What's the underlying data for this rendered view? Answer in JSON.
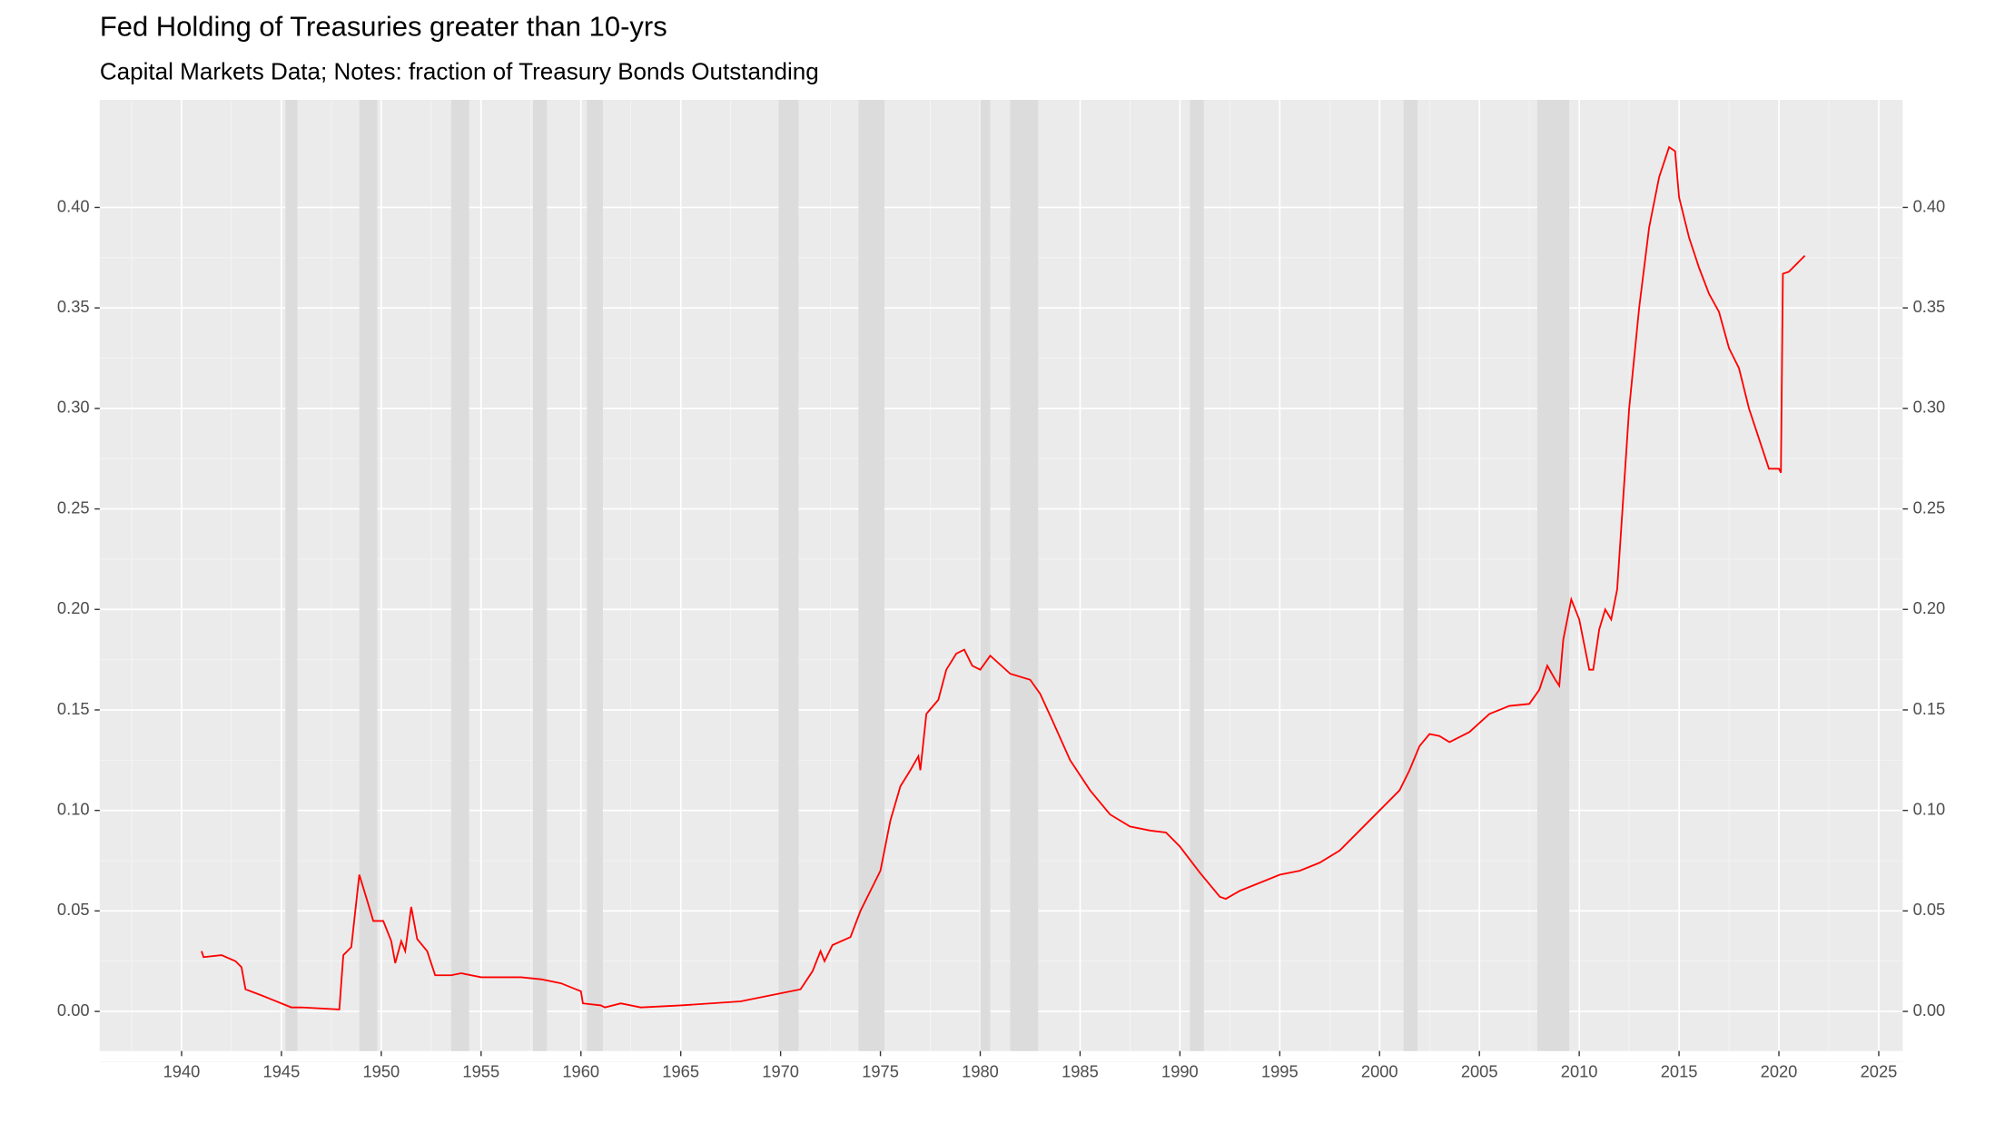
{
  "chart_data": {
    "type": "line",
    "title": "Fed Holding of Treasuries greater than 10-yrs",
    "subtitle": "Capital Markets Data; Notes: fraction of Treasury Bonds Outstanding",
    "series": [
      {
        "color": "#ff0000",
        "x": [
          1941.0,
          1941.1,
          1942.0,
          1942.7,
          1943.0,
          1943.2,
          1944.0,
          1944.5,
          1945.0,
          1945.5,
          1946.0,
          1947.9,
          1948.1,
          1948.5,
          1948.9,
          1949.3,
          1949.6,
          1950.1,
          1950.5,
          1950.7,
          1951.0,
          1951.2,
          1951.5,
          1951.8,
          1952.3,
          1952.7,
          1953.5,
          1954.0,
          1955.0,
          1957.0,
          1958.0,
          1959.0,
          1960.0,
          1960.1,
          1961.0,
          1961.2,
          1962.0,
          1963.0,
          1965.0,
          1968.0,
          1970.0,
          1971.0,
          1971.6,
          1972.0,
          1972.2,
          1972.6,
          1973.5,
          1974.0,
          1974.5,
          1975.0,
          1975.5,
          1976.0,
          1976.5,
          1976.9,
          1977.0,
          1977.3,
          1977.9,
          1978.3,
          1978.8,
          1979.2,
          1979.6,
          1980.0,
          1980.5,
          1981.5,
          1982.5,
          1983.0,
          1983.6,
          1984.5,
          1985.5,
          1986.5,
          1987.5,
          1988.5,
          1989.3,
          1990.0,
          1991.0,
          1991.5,
          1992.0,
          1992.3,
          1993.0,
          1994.0,
          1995.0,
          1996.0,
          1997.0,
          1998.0,
          1999.0,
          2000.0,
          2001.0,
          2001.5,
          2002.0,
          2002.5,
          2003.0,
          2003.5,
          2004.5,
          2005.5,
          2006.5,
          2007.5,
          2008.0,
          2008.4,
          2008.8,
          2009.0,
          2009.2,
          2009.6,
          2010.0,
          2010.5,
          2010.7,
          2011.0,
          2011.3,
          2011.6,
          2011.9,
          2012.1,
          2012.5,
          2013.0,
          2013.5,
          2014.0,
          2014.5,
          2014.8,
          2015.0,
          2015.5,
          2016.0,
          2016.5,
          2017.0,
          2017.5,
          2018.0,
          2018.5,
          2019.0,
          2019.5,
          2020.0,
          2020.1,
          2020.2,
          2020.5,
          2021.0,
          2021.3
        ],
        "values": [
          0.03,
          0.027,
          0.028,
          0.025,
          0.022,
          0.011,
          0.008,
          0.006,
          0.004,
          0.002,
          0.002,
          0.001,
          0.028,
          0.032,
          0.068,
          0.055,
          0.045,
          0.045,
          0.035,
          0.024,
          0.035,
          0.03,
          0.052,
          0.036,
          0.03,
          0.018,
          0.018,
          0.019,
          0.017,
          0.017,
          0.016,
          0.014,
          0.01,
          0.004,
          0.003,
          0.002,
          0.004,
          0.002,
          0.003,
          0.005,
          0.009,
          0.011,
          0.02,
          0.03,
          0.025,
          0.033,
          0.037,
          0.05,
          0.06,
          0.07,
          0.095,
          0.112,
          0.12,
          0.127,
          0.12,
          0.148,
          0.155,
          0.17,
          0.178,
          0.18,
          0.172,
          0.17,
          0.177,
          0.168,
          0.165,
          0.158,
          0.145,
          0.125,
          0.11,
          0.098,
          0.092,
          0.09,
          0.089,
          0.082,
          0.069,
          0.063,
          0.057,
          0.056,
          0.06,
          0.064,
          0.068,
          0.07,
          0.074,
          0.08,
          0.09,
          0.1,
          0.11,
          0.12,
          0.132,
          0.138,
          0.137,
          0.134,
          0.139,
          0.148,
          0.152,
          0.153,
          0.16,
          0.172,
          0.165,
          0.162,
          0.185,
          0.205,
          0.195,
          0.17,
          0.17,
          0.19,
          0.2,
          0.195,
          0.21,
          0.24,
          0.3,
          0.35,
          0.39,
          0.415,
          0.43,
          0.428,
          0.405,
          0.385,
          0.37,
          0.357,
          0.348,
          0.33,
          0.32,
          0.3,
          0.285,
          0.27,
          0.27,
          0.268,
          0.367,
          0.368,
          0.373,
          0.376
        ]
      }
    ],
    "recessions": [
      [
        1945.2,
        1945.8
      ],
      [
        1948.9,
        1949.8
      ],
      [
        1953.5,
        1954.4
      ],
      [
        1957.6,
        1958.3
      ],
      [
        1960.3,
        1961.1
      ],
      [
        1969.9,
        1970.9
      ],
      [
        1973.9,
        1975.2
      ],
      [
        1980.0,
        1980.5
      ],
      [
        1981.5,
        1982.9
      ],
      [
        1990.5,
        1991.2
      ],
      [
        2001.2,
        2001.9
      ],
      [
        2007.9,
        2009.5
      ]
    ],
    "recession_color": "#dcdcdc",
    "xlim": [
      1935.9,
      2026.2
    ],
    "xticks": [
      1940,
      1945,
      1950,
      1955,
      1960,
      1965,
      1970,
      1975,
      1980,
      1985,
      1990,
      1995,
      2000,
      2005,
      2010,
      2015,
      2020,
      2025
    ],
    "ylim": [
      -0.0197,
      0.4535
    ],
    "yticks": [
      {
        "value": 0,
        "label": "0.00"
      },
      {
        "value": 0.05,
        "label": "0.05"
      },
      {
        "value": 0.1,
        "label": "0.10"
      },
      {
        "value": 0.15,
        "label": "0.15"
      },
      {
        "value": 0.2,
        "label": "0.20"
      },
      {
        "value": 0.25,
        "label": "0.25"
      },
      {
        "value": 0.3,
        "label": "0.30"
      },
      {
        "value": 0.35,
        "label": "0.35"
      },
      {
        "value": 0.4,
        "label": "0.40"
      }
    ],
    "grid": true
  }
}
